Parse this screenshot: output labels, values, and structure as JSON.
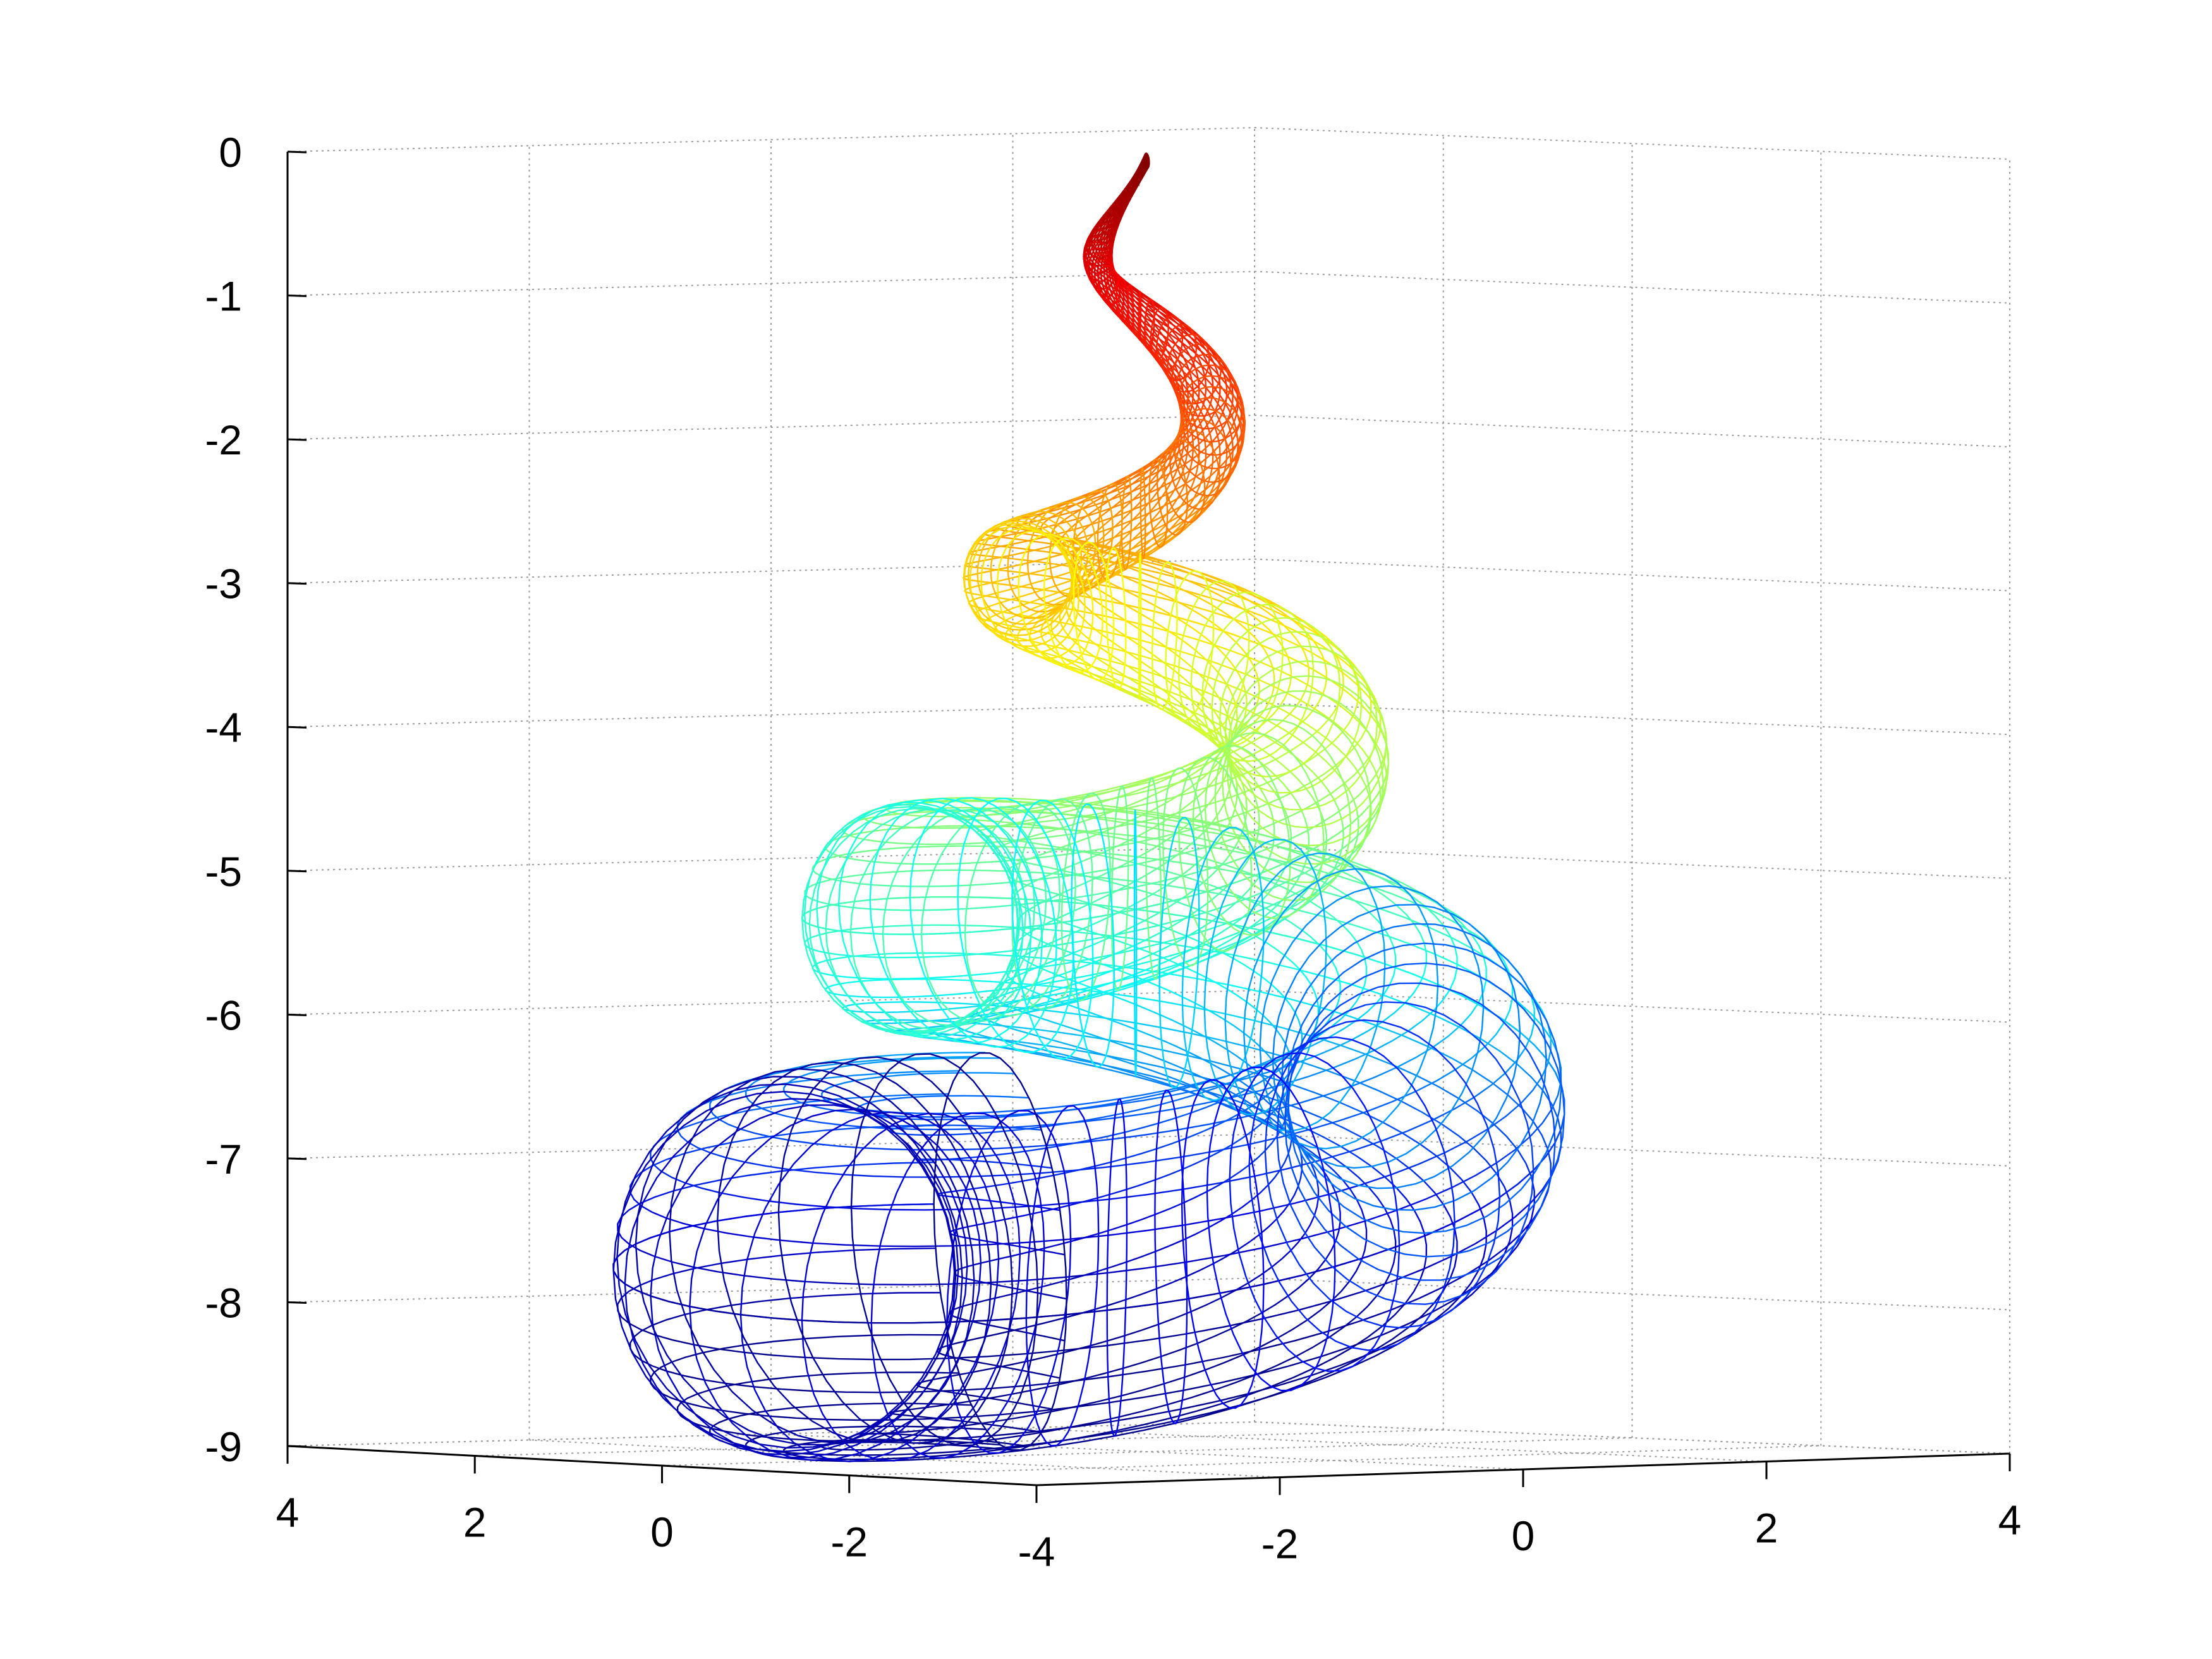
{
  "chart_data": {
    "type": "surface-mesh-3d",
    "title": "",
    "xlabel": "",
    "ylabel": "",
    "zlabel": "",
    "surface": {
      "description": "conical spiral seashell wireframe",
      "turns": 3.5,
      "z_apex": 0,
      "z_base": -8.2,
      "max_radius": 4,
      "colormap": "jet"
    },
    "axes": {
      "x": {
        "ticks": [
          4,
          2,
          0,
          -2,
          -4
        ],
        "tick_labels": [
          "4",
          "2",
          "0",
          "-2",
          "-4"
        ],
        "lim": [
          -4,
          4
        ]
      },
      "y": {
        "ticks": [
          -2,
          0,
          2,
          4
        ],
        "tick_labels": [
          "-2",
          "0",
          "2",
          "4"
        ],
        "lim": [
          -4,
          4
        ]
      },
      "z": {
        "ticks": [
          0,
          -1,
          -2,
          -3,
          -4,
          -5,
          -6,
          -7,
          -8,
          -9
        ],
        "tick_labels": [
          "0",
          "-1",
          "-2",
          "-3",
          "-4",
          "-5",
          "-6",
          "-7",
          "-8",
          "-9"
        ],
        "lim": [
          -9,
          0
        ]
      }
    },
    "grid": true,
    "box": false,
    "colors": {
      "axis": "#000000",
      "grid": "#9a9a9a",
      "colormap_stops": [
        "#00008f",
        "#0000ff",
        "#00ffff",
        "#80ff80",
        "#ffff00",
        "#ff8000",
        "#ff0000",
        "#800000"
      ]
    }
  }
}
